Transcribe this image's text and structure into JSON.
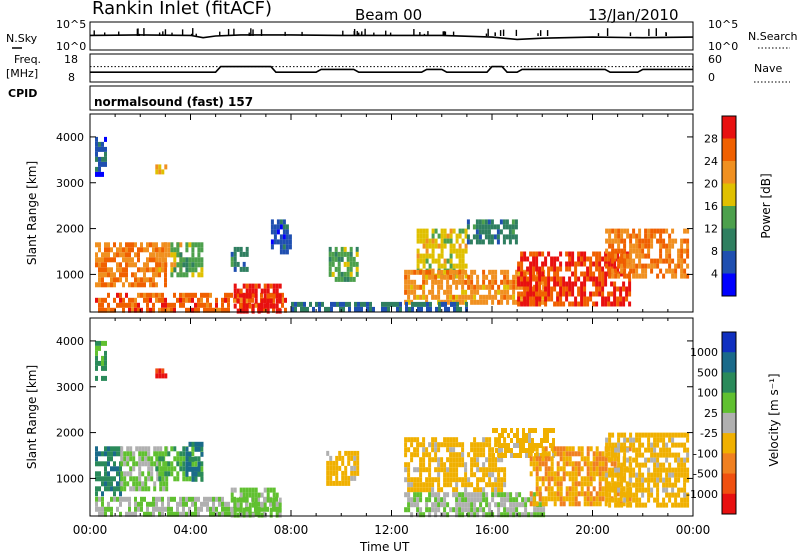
{
  "header": {
    "station": "Rankin Inlet (fitACF)",
    "beam": "Beam 00",
    "date": "13/Jan/2010"
  },
  "time_axis": {
    "label": "Time UT",
    "ticks": [
      "00:00",
      "04:00",
      "08:00",
      "12:00",
      "16:00",
      "20:00",
      "00:00"
    ]
  },
  "noise_panel": {
    "left_label": "N.Sky",
    "right_label": "N.Search",
    "left_ticks": [
      "10^5",
      "10^0"
    ],
    "right_ticks": [
      "10^5",
      "10^0"
    ]
  },
  "freq_panel": {
    "left_label_1": "Freq.",
    "left_label_2": "[MHz]",
    "right_label": "Nave",
    "left_ticks": [
      "18",
      "8"
    ],
    "right_ticks": [
      "60",
      "0"
    ]
  },
  "cpid": {
    "label": "CPID",
    "text": "normalsound (fast) 157"
  },
  "power_panel": {
    "ylabel": "Slant Range [km]",
    "yticks": [
      "4000",
      "3000",
      "2000",
      "1000"
    ],
    "colorbar_label": "Power [dB]",
    "colorbar_ticks": [
      "28",
      "24",
      "20",
      "16",
      "12",
      "8",
      "4"
    ],
    "colors": [
      "#0000ff",
      "#1f4fb0",
      "#2f7f60",
      "#4ca04c",
      "#e0c000",
      "#f09020",
      "#f06000",
      "#e81010"
    ]
  },
  "velocity_panel": {
    "ylabel": "Slant Range [km]",
    "yticks": [
      "4000",
      "3000",
      "2000",
      "1000"
    ],
    "colorbar_label": "Velocity [m s⁻¹]",
    "colorbar_ticks": [
      "1000",
      "500",
      "100",
      "25",
      "-25",
      "-100",
      "-500",
      "-1000"
    ],
    "colors": [
      "#1030c0",
      "#1a6a8a",
      "#2a8a5a",
      "#60c030",
      "#b0b0b0",
      "#f0b000",
      "#f08020",
      "#f05010",
      "#e81010"
    ]
  },
  "chart_data": [
    {
      "type": "line",
      "title": "N.Sky / N.Search",
      "xlabel": "Time UT",
      "xlim": [
        0,
        24
      ],
      "ylim": [
        0,
        5
      ],
      "yscale": "log",
      "series": [
        {
          "x": [
            0,
            2,
            4,
            4.5,
            5,
            6,
            8,
            10,
            12,
            14,
            16,
            17,
            18,
            20,
            22,
            24
          ],
          "values": [
            2.6,
            2.7,
            2.6,
            2.2,
            2.5,
            2.7,
            2.7,
            2.6,
            2.6,
            2.6,
            2.3,
            1.9,
            2.1,
            2.3,
            2.2,
            2.3
          ]
        }
      ]
    },
    {
      "type": "line",
      "title": "Freq / Nave",
      "xlabel": "Time UT",
      "xlim": [
        0,
        24
      ],
      "ylim": [
        8,
        18
      ],
      "series": [
        {
          "x": [
            0,
            5,
            5.2,
            7.2,
            7.4,
            9,
            9.2,
            10.5,
            10.7,
            13.2,
            13.4,
            14,
            14.2,
            15.8,
            16,
            16.4,
            16.6,
            17,
            17.2,
            20.5,
            20.7,
            21.8,
            22,
            24
          ],
          "values": [
            11.5,
            11.5,
            13.5,
            13.5,
            11.5,
            11.5,
            12.5,
            12.5,
            11.5,
            11.5,
            12.5,
            12.5,
            11.5,
            11.5,
            13.5,
            13.5,
            11.5,
            11.5,
            12.5,
            12.5,
            11.5,
            11.5,
            12.5,
            12.5
          ]
        },
        {
          "x": [
            0,
            24
          ],
          "values": [
            13.5,
            13.5
          ]
        }
      ]
    },
    {
      "type": "heatmap",
      "title": "Power [dB]",
      "xlabel": "Time UT",
      "ylabel": "Slant Range [km]",
      "xlim": [
        0,
        24
      ],
      "ylim": [
        180,
        4500
      ],
      "zlim": [
        0,
        32
      ],
      "regions": [
        {
          "t": [
            0.2,
            3.0
          ],
          "r": [
            750,
            1700
          ],
          "v": 24
        },
        {
          "t": [
            2.6,
            3.6
          ],
          "r": [
            1100,
            1700
          ],
          "v": 22
        },
        {
          "t": [
            3.2,
            4.4
          ],
          "r": [
            1000,
            1700
          ],
          "v": 14
        },
        {
          "t": [
            0.2,
            7.8
          ],
          "r": [
            200,
            600
          ],
          "v": 26
        },
        {
          "t": [
            5.6,
            7.6
          ],
          "r": [
            250,
            800
          ],
          "v": 30
        },
        {
          "t": [
            5.6,
            6.2
          ],
          "r": [
            1100,
            1600
          ],
          "v": 10
        },
        {
          "t": [
            7.2,
            8.0
          ],
          "r": [
            1500,
            2200
          ],
          "v": 6
        },
        {
          "t": [
            9.5,
            10.6
          ],
          "r": [
            900,
            1600
          ],
          "v": 14
        },
        {
          "t": [
            13.0,
            15.0
          ],
          "r": [
            1000,
            2000
          ],
          "v": 18
        },
        {
          "t": [
            12.5,
            18.0
          ],
          "r": [
            400,
            1100
          ],
          "v": 22
        },
        {
          "t": [
            15.0,
            17.0
          ],
          "r": [
            1700,
            2200
          ],
          "v": 10
        },
        {
          "t": [
            17.0,
            21.5
          ],
          "r": [
            300,
            1500
          ],
          "v": 28
        },
        {
          "t": [
            20.5,
            23.8
          ],
          "r": [
            1000,
            2000
          ],
          "v": 24
        },
        {
          "t": [
            8.0,
            15.0
          ],
          "r": [
            200,
            400
          ],
          "v": 8
        },
        {
          "t": [
            0.2,
            0.6
          ],
          "r": [
            3200,
            4000
          ],
          "v": 6
        },
        {
          "t": [
            2.6,
            3.0
          ],
          "r": [
            3200,
            3400
          ],
          "v": 20
        }
      ]
    },
    {
      "type": "heatmap",
      "title": "Velocity [m s⁻¹]",
      "xlabel": "Time UT",
      "ylabel": "Slant Range [km]",
      "xlim": [
        0,
        24
      ],
      "ylim": [
        180,
        4500
      ],
      "zlim": [
        -1000,
        1000
      ],
      "regions": [
        {
          "t": [
            0.2,
            1.2
          ],
          "r": [
            700,
            1700
          ],
          "v": 500
        },
        {
          "t": [
            1.2,
            3.0
          ],
          "r": [
            800,
            1700
          ],
          "v": 100
        },
        {
          "t": [
            2.6,
            4.4
          ],
          "r": [
            1000,
            1700
          ],
          "v": 300
        },
        {
          "t": [
            3.8,
            4.4
          ],
          "r": [
            1000,
            1800
          ],
          "v": 600
        },
        {
          "t": [
            0.2,
            7.6
          ],
          "r": [
            200,
            600
          ],
          "v": 100
        },
        {
          "t": [
            5.6,
            7.6
          ],
          "r": [
            250,
            800
          ],
          "v": 150
        },
        {
          "t": [
            9.4,
            10.6
          ],
          "r": [
            900,
            1600
          ],
          "v": -200
        },
        {
          "t": [
            12.5,
            16.5
          ],
          "r": [
            700,
            1900
          ],
          "v": -200
        },
        {
          "t": [
            16.0,
            18.5
          ],
          "r": [
            1500,
            2100
          ],
          "v": -200
        },
        {
          "t": [
            12.5,
            18.0
          ],
          "r": [
            250,
            700
          ],
          "v": 100
        },
        {
          "t": [
            17.5,
            21.5
          ],
          "r": [
            400,
            1700
          ],
          "v": -300
        },
        {
          "t": [
            20.5,
            23.8
          ],
          "r": [
            400,
            2000
          ],
          "v": -200
        },
        {
          "t": [
            0.2,
            0.6
          ],
          "r": [
            3200,
            4000
          ],
          "v": 400
        },
        {
          "t": [
            2.6,
            3.0
          ],
          "r": [
            3200,
            3400
          ],
          "v": -800
        }
      ]
    }
  ]
}
